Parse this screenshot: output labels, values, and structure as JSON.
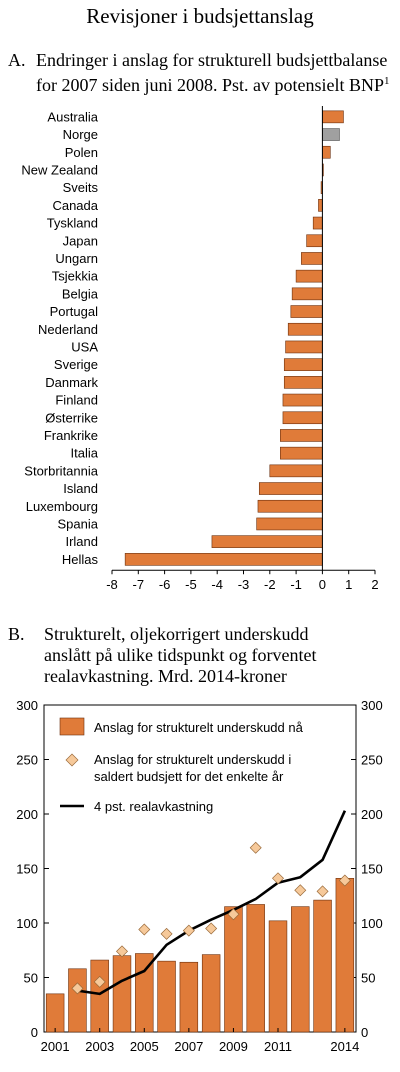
{
  "page": {
    "title": "Revisjoner i budsjettanslag"
  },
  "panelA": {
    "letter": "A.",
    "title_line1": "Endringer i anslag for strukturell budsjettbalanse",
    "title_line2": "for 2007 siden juni 2008. Pst. av potensielt BNP",
    "title_sup": "1"
  },
  "panelB": {
    "letter": "B.",
    "title_line1": "Strukturelt, oljekorrigert underskudd",
    "title_line2": "anslått på ulike tidspunkt og forventet",
    "title_line3": "realavkastning. Mrd. 2014-kroner"
  },
  "colors": {
    "bar": "#e07b39",
    "bar_stroke": "#6b2f0c",
    "norway": "#a0a0a0",
    "diamond": "#f6c99a",
    "line": "#000000"
  },
  "chart_data": [
    {
      "type": "bar",
      "orientation": "horizontal",
      "categories": [
        "Australia",
        "Norge",
        "Polen",
        "New Zealand",
        "Sveits",
        "Canada",
        "Tyskland",
        "Japan",
        "Ungarn",
        "Tsjekkia",
        "Belgia",
        "Portugal",
        "Nederland",
        "USA",
        "Sverige",
        "Danmark",
        "Finland",
        "Østerrike",
        "Frankrike",
        "Italia",
        "Storbritannia",
        "Island",
        "Luxembourg",
        "Spania",
        "Irland",
        "Hellas"
      ],
      "values": [
        0.8,
        0.65,
        0.3,
        0.03,
        -0.05,
        -0.15,
        -0.35,
        -0.6,
        -0.8,
        -1.0,
        -1.15,
        -1.2,
        -1.3,
        -1.4,
        -1.45,
        -1.45,
        -1.5,
        -1.5,
        -1.6,
        -1.6,
        -2.0,
        -2.4,
        -2.45,
        -2.5,
        -4.2,
        -7.5
      ],
      "highlight": "Norge",
      "xlim": [
        -8,
        2
      ],
      "xticks": [
        "-8",
        "-7",
        "-6",
        "-5",
        "-4",
        "-3",
        "-2",
        "-1",
        "0",
        "1",
        "2"
      ],
      "xlabel": "",
      "ylabel": ""
    },
    {
      "type": "bar",
      "x": [
        2001,
        2002,
        2003,
        2004,
        2005,
        2006,
        2007,
        2008,
        2009,
        2010,
        2011,
        2012,
        2013,
        2014
      ],
      "xticks": [
        "2001",
        "2003",
        "2005",
        "2007",
        "2009",
        "2011",
        "2014"
      ],
      "ylim": [
        0,
        300
      ],
      "yticks": [
        "0",
        "50",
        "100",
        "150",
        "200",
        "250",
        "300"
      ],
      "series": [
        {
          "name": "Anslag for strukturelt underskudd nå",
          "type": "bar",
          "values": [
            35,
            58,
            66,
            70,
            72,
            65,
            64,
            71,
            115,
            117,
            102,
            115,
            121,
            141
          ]
        },
        {
          "name": "Anslag for strukturelt underskudd i saldert budsjett for det enkelte år",
          "type": "scatter",
          "values": [
            null,
            40,
            46,
            74,
            94,
            90,
            93,
            95,
            108,
            169,
            141,
            130,
            129,
            139
          ]
        },
        {
          "name": "4 pst. realavkastning",
          "type": "line",
          "values": [
            null,
            38,
            35,
            47,
            56,
            80,
            93,
            103,
            112,
            122,
            137,
            142,
            158,
            203
          ]
        }
      ],
      "legend": [
        {
          "kind": "bar",
          "line1": "Anslag for strukturelt underskudd nå",
          "line2": ""
        },
        {
          "kind": "diamond",
          "line1": "Anslag for strukturelt underskudd i",
          "line2": "saldert budsjett for det enkelte år"
        },
        {
          "kind": "line",
          "line1": "4 pst. realavkastning",
          "line2": ""
        }
      ],
      "legend_position": "top-left"
    }
  ]
}
